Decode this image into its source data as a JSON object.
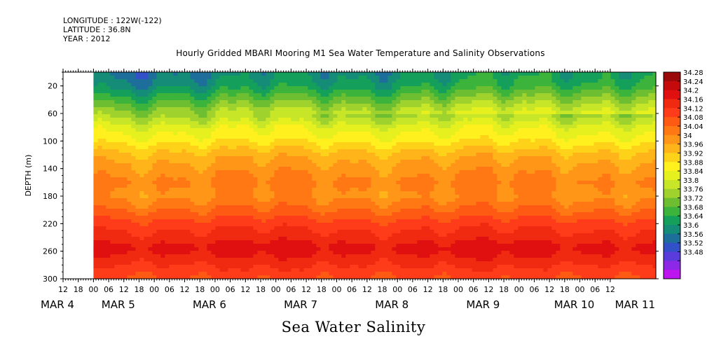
{
  "header": {
    "longitude": "LONGITUDE : 122W(-122)",
    "latitude": "LATITUDE : 36.8N",
    "year": "YEAR : 2012"
  },
  "chart_data": {
    "type": "heatmap",
    "title": "Hourly Gridded MBARI Mooring M1 Sea Water Temperature and Salinity Observations",
    "subtitle": "Sea Water Salinity",
    "ylabel": "DEPTH (m)",
    "ylim": [
      300,
      0
    ],
    "y_ticks": [
      20,
      60,
      100,
      140,
      180,
      220,
      260,
      300
    ],
    "x_hour_ticks": [
      "12",
      "18",
      "00",
      "06",
      "12",
      "18",
      "00",
      "06",
      "12",
      "18",
      "00",
      "06",
      "12",
      "18",
      "00",
      "06",
      "12",
      "18",
      "00",
      "06",
      "12",
      "18",
      "00",
      "06",
      "12",
      "18",
      "00",
      "06",
      "12",
      "18",
      "00",
      "06",
      "12",
      "18",
      "00",
      "06",
      "12"
    ],
    "x_day_labels": [
      "MAR  4",
      "MAR  5",
      "MAR  6",
      "MAR  7",
      "MAR  8",
      "MAR  9",
      "MAR 10",
      "MAR 11"
    ],
    "x_day_hours": [
      12,
      36,
      72,
      108,
      144,
      180,
      216,
      240
    ],
    "x_range_hours": [
      12,
      216
    ],
    "x_data_start_hour": 24,
    "colorbar_levels": [
      "34.28",
      "34.24",
      "34.2",
      "34.16",
      "34.12",
      "34.08",
      "34.04",
      "34",
      "33.96",
      "33.92",
      "33.88",
      "33.84",
      "33.8",
      "33.76",
      "33.72",
      "33.68",
      "33.64",
      "33.6",
      "33.56",
      "33.52",
      "33.48"
    ],
    "colors": [
      "#9b0a0a",
      "#c40a0a",
      "#e01010",
      "#f02a10",
      "#ff3c1a",
      "#ff5a14",
      "#ff7814",
      "#ff9618",
      "#ffb41a",
      "#ffd21a",
      "#fff01e",
      "#e6f01e",
      "#c8e628",
      "#a0d22d",
      "#6ebe32",
      "#3cb43c",
      "#14a05a",
      "#148c78",
      "#1e6e9b",
      "#3250c8",
      "#5a3cdc",
      "#8c28e6",
      "#be14f0"
    ],
    "depth_profile": [
      {
        "depth": 5,
        "value": 33.63
      },
      {
        "depth": 20,
        "value": 33.66
      },
      {
        "depth": 40,
        "value": 33.74
      },
      {
        "depth": 60,
        "value": 33.82
      },
      {
        "depth": 80,
        "value": 33.9
      },
      {
        "depth": 100,
        "value": 33.95
      },
      {
        "depth": 120,
        "value": 34.02
      },
      {
        "depth": 140,
        "value": 34.06
      },
      {
        "depth": 160,
        "value": 34.09
      },
      {
        "depth": 180,
        "value": 34.07
      },
      {
        "depth": 200,
        "value": 34.12
      },
      {
        "depth": 220,
        "value": 34.18
      },
      {
        "depth": 240,
        "value": 34.22
      },
      {
        "depth": 255,
        "value": 34.26
      },
      {
        "depth": 270,
        "value": 34.23
      },
      {
        "depth": 290,
        "value": 34.18
      },
      {
        "depth": 300,
        "value": 34.16
      }
    ]
  }
}
